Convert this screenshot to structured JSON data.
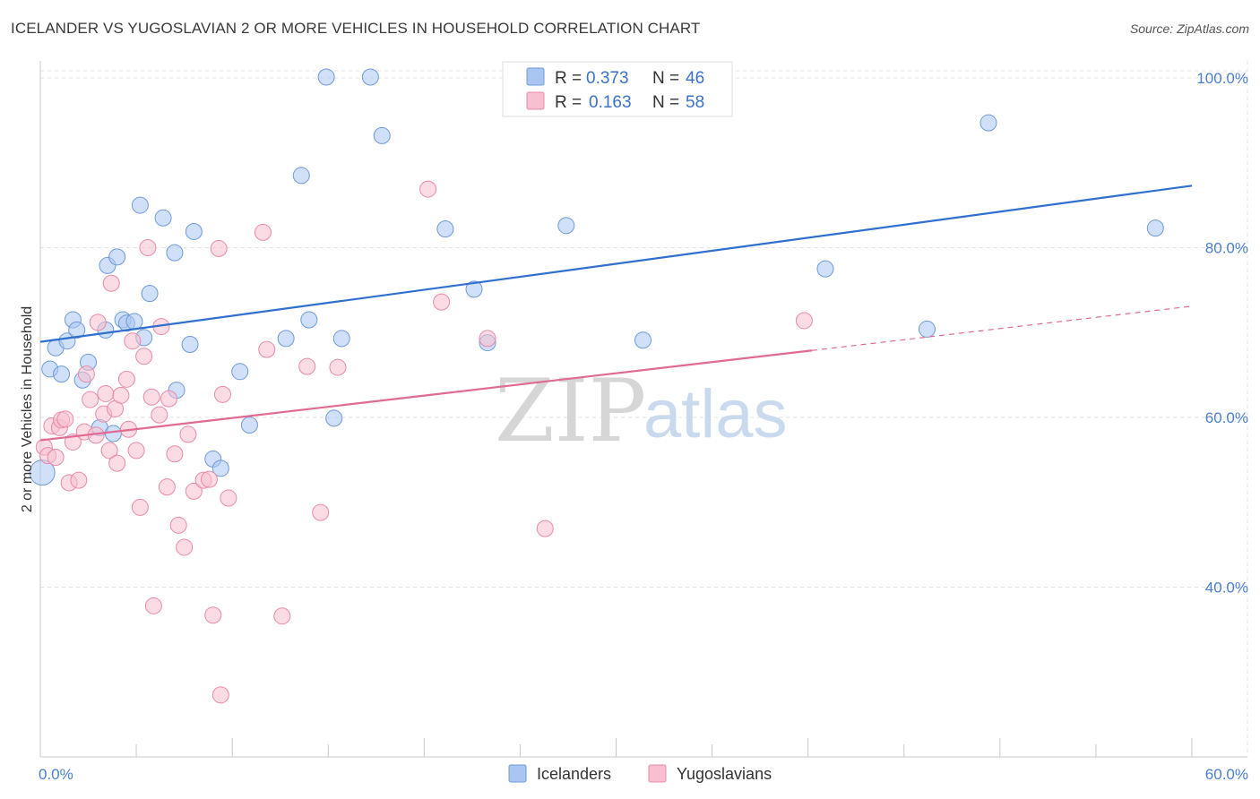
{
  "header": {
    "title": "ICELANDER VS YUGOSLAVIAN 2 OR MORE VEHICLES IN HOUSEHOLD CORRELATION CHART",
    "source": "Source: ZipAtlas.com"
  },
  "watermark": {
    "zip": "ZIP",
    "atlas": "atlas"
  },
  "legend": {
    "rows": [
      {
        "r_label": "R =",
        "r_value": "0.373",
        "n_label": "N =",
        "n_value": "46",
        "color": "#a9c6f2",
        "stroke": "#6f9ad8"
      },
      {
        "r_label": "R =",
        "r_value": "0.163",
        "n_label": "N =",
        "n_value": "58",
        "color": "#f7bfd0",
        "stroke": "#e98aa8"
      }
    ]
  },
  "bottom_legend": [
    "Icelanders",
    "Yugoslavians"
  ],
  "chart_data": {
    "type": "scatter",
    "title": "ICELANDER VS YUGOSLAVIAN 2 OR MORE VEHICLES IN HOUSEHOLD CORRELATION CHART",
    "xlabel": "",
    "ylabel": "2 or more Vehicles in Household",
    "xlim": [
      0,
      60
    ],
    "ylim": [
      20,
      102
    ],
    "y_ticks": [
      40,
      60,
      80,
      100
    ],
    "y_tick_labels": [
      "40.0%",
      "60.0%",
      "80.0%",
      "100.0%"
    ],
    "x_tick_labels": [
      "0.0%",
      "60.0%"
    ],
    "grid": true,
    "legend_position": "top-center",
    "series": [
      {
        "name": "Icelanders",
        "color": "#a9c6f2",
        "stroke": "#6f9ad8",
        "line_color": "#2f6fcf",
        "trend": {
          "x0": 0,
          "y0": 68.9,
          "x1": 60,
          "y1": 87.3,
          "solid_until": 60
        },
        "points": [
          [
            0.1,
            53.5
          ],
          [
            0.5,
            65.7
          ],
          [
            0.8,
            68.2
          ],
          [
            1.1,
            65.1
          ],
          [
            1.4,
            69.0
          ],
          [
            1.7,
            71.5
          ],
          [
            1.9,
            70.3
          ],
          [
            2.2,
            64.4
          ],
          [
            2.5,
            66.5
          ],
          [
            3.1,
            58.8
          ],
          [
            3.4,
            70.3
          ],
          [
            3.5,
            77.9
          ],
          [
            3.8,
            58.1
          ],
          [
            4.0,
            78.9
          ],
          [
            4.3,
            71.5
          ],
          [
            4.5,
            71.1
          ],
          [
            4.9,
            71.3
          ],
          [
            5.2,
            85.0
          ],
          [
            5.4,
            69.4
          ],
          [
            5.7,
            74.6
          ],
          [
            6.4,
            83.5
          ],
          [
            7.0,
            79.4
          ],
          [
            7.1,
            63.2
          ],
          [
            7.8,
            68.6
          ],
          [
            8.0,
            81.9
          ],
          [
            9.0,
            55.1
          ],
          [
            9.4,
            54.0
          ],
          [
            10.4,
            65.4
          ],
          [
            10.9,
            59.1
          ],
          [
            12.8,
            69.3
          ],
          [
            13.6,
            88.5
          ],
          [
            14.0,
            71.5
          ],
          [
            14.9,
            100.1
          ],
          [
            15.3,
            59.9
          ],
          [
            15.7,
            69.3
          ],
          [
            17.2,
            100.1
          ],
          [
            17.8,
            93.2
          ],
          [
            21.1,
            82.2
          ],
          [
            22.6,
            75.1
          ],
          [
            23.3,
            68.8
          ],
          [
            27.4,
            82.6
          ],
          [
            31.4,
            69.1
          ],
          [
            40.9,
            77.5
          ],
          [
            46.2,
            70.4
          ],
          [
            49.4,
            94.7
          ],
          [
            58.1,
            82.3
          ]
        ]
      },
      {
        "name": "Yugoslavians",
        "color": "#f7bfd0",
        "stroke": "#e98aa8",
        "line_color": "#e06a93",
        "trend": {
          "x0": 0,
          "y0": 57.3,
          "x1": 60,
          "y1": 73.1,
          "solid_until": 40.2
        },
        "points": [
          [
            0.2,
            56.5
          ],
          [
            0.4,
            55.5
          ],
          [
            0.6,
            59.0
          ],
          [
            0.8,
            55.3
          ],
          [
            1.0,
            58.8
          ],
          [
            1.1,
            59.7
          ],
          [
            1.3,
            59.8
          ],
          [
            1.5,
            52.3
          ],
          [
            1.7,
            57.1
          ],
          [
            2.0,
            52.6
          ],
          [
            2.3,
            58.3
          ],
          [
            2.4,
            65.1
          ],
          [
            2.6,
            62.1
          ],
          [
            2.9,
            57.9
          ],
          [
            3.0,
            71.2
          ],
          [
            3.3,
            60.4
          ],
          [
            3.4,
            62.8
          ],
          [
            3.6,
            56.1
          ],
          [
            3.7,
            75.8
          ],
          [
            3.9,
            61.0
          ],
          [
            4.0,
            54.6
          ],
          [
            4.2,
            62.6
          ],
          [
            4.5,
            64.5
          ],
          [
            4.6,
            58.6
          ],
          [
            4.8,
            69.0
          ],
          [
            5.0,
            56.1
          ],
          [
            5.2,
            49.4
          ],
          [
            5.4,
            67.2
          ],
          [
            5.6,
            80.0
          ],
          [
            5.8,
            62.4
          ],
          [
            5.9,
            37.8
          ],
          [
            6.2,
            60.3
          ],
          [
            6.3,
            70.7
          ],
          [
            6.6,
            51.8
          ],
          [
            6.7,
            62.2
          ],
          [
            7.0,
            55.7
          ],
          [
            7.2,
            47.3
          ],
          [
            7.5,
            44.7
          ],
          [
            7.7,
            58.0
          ],
          [
            8.0,
            51.3
          ],
          [
            8.5,
            52.6
          ],
          [
            8.8,
            52.7
          ],
          [
            9.0,
            36.7
          ],
          [
            9.3,
            79.9
          ],
          [
            9.5,
            62.7
          ],
          [
            9.4,
            27.3
          ],
          [
            9.8,
            50.5
          ],
          [
            11.6,
            81.8
          ],
          [
            11.8,
            68.0
          ],
          [
            12.6,
            36.6
          ],
          [
            13.9,
            66.0
          ],
          [
            14.6,
            48.8
          ],
          [
            15.5,
            65.9
          ],
          [
            20.2,
            86.9
          ],
          [
            20.9,
            73.6
          ],
          [
            23.3,
            69.3
          ],
          [
            26.3,
            46.9
          ],
          [
            39.8,
            71.4
          ]
        ]
      }
    ]
  }
}
